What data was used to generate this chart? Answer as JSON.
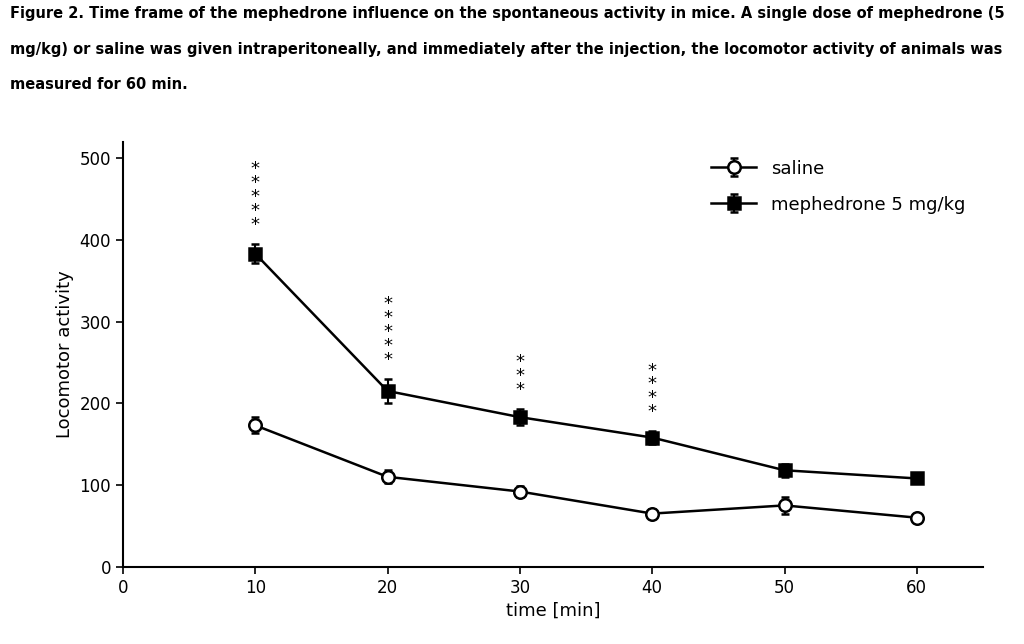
{
  "x": [
    10,
    20,
    30,
    40,
    50,
    60
  ],
  "saline_y": [
    173,
    110,
    92,
    65,
    75,
    60
  ],
  "saline_err": [
    10,
    8,
    7,
    6,
    10,
    5
  ],
  "meph_y": [
    383,
    215,
    183,
    158,
    118,
    108
  ],
  "meph_err": [
    12,
    15,
    10,
    8,
    8,
    6
  ],
  "significance": {
    "10": 5,
    "20": 5,
    "30": 3,
    "40": 4
  },
  "xlim": [
    0,
    65
  ],
  "ylim": [
    0,
    520
  ],
  "yticks": [
    0,
    100,
    200,
    300,
    400,
    500
  ],
  "xticks": [
    0,
    10,
    20,
    30,
    40,
    50,
    60
  ],
  "xlabel": "time [min]",
  "ylabel": "Locomotor activity",
  "caption_line1": "Figure 2. Time frame of the mephedrone influence on the spontaneous activity in mice. A single dose of mephedrone (5",
  "caption_line2": "mg/kg) or saline was given intraperitoneally, and immediately after the injection, the locomotor activity of animals was",
  "caption_line3": "measured for 60 min.",
  "legend_saline": "saline",
  "legend_meph": "mephedrone 5 mg/kg",
  "line_color": "#000000",
  "background_color": "#ffffff",
  "caption_fontsize": 10.5,
  "label_fontsize": 13,
  "tick_fontsize": 12,
  "legend_fontsize": 13
}
